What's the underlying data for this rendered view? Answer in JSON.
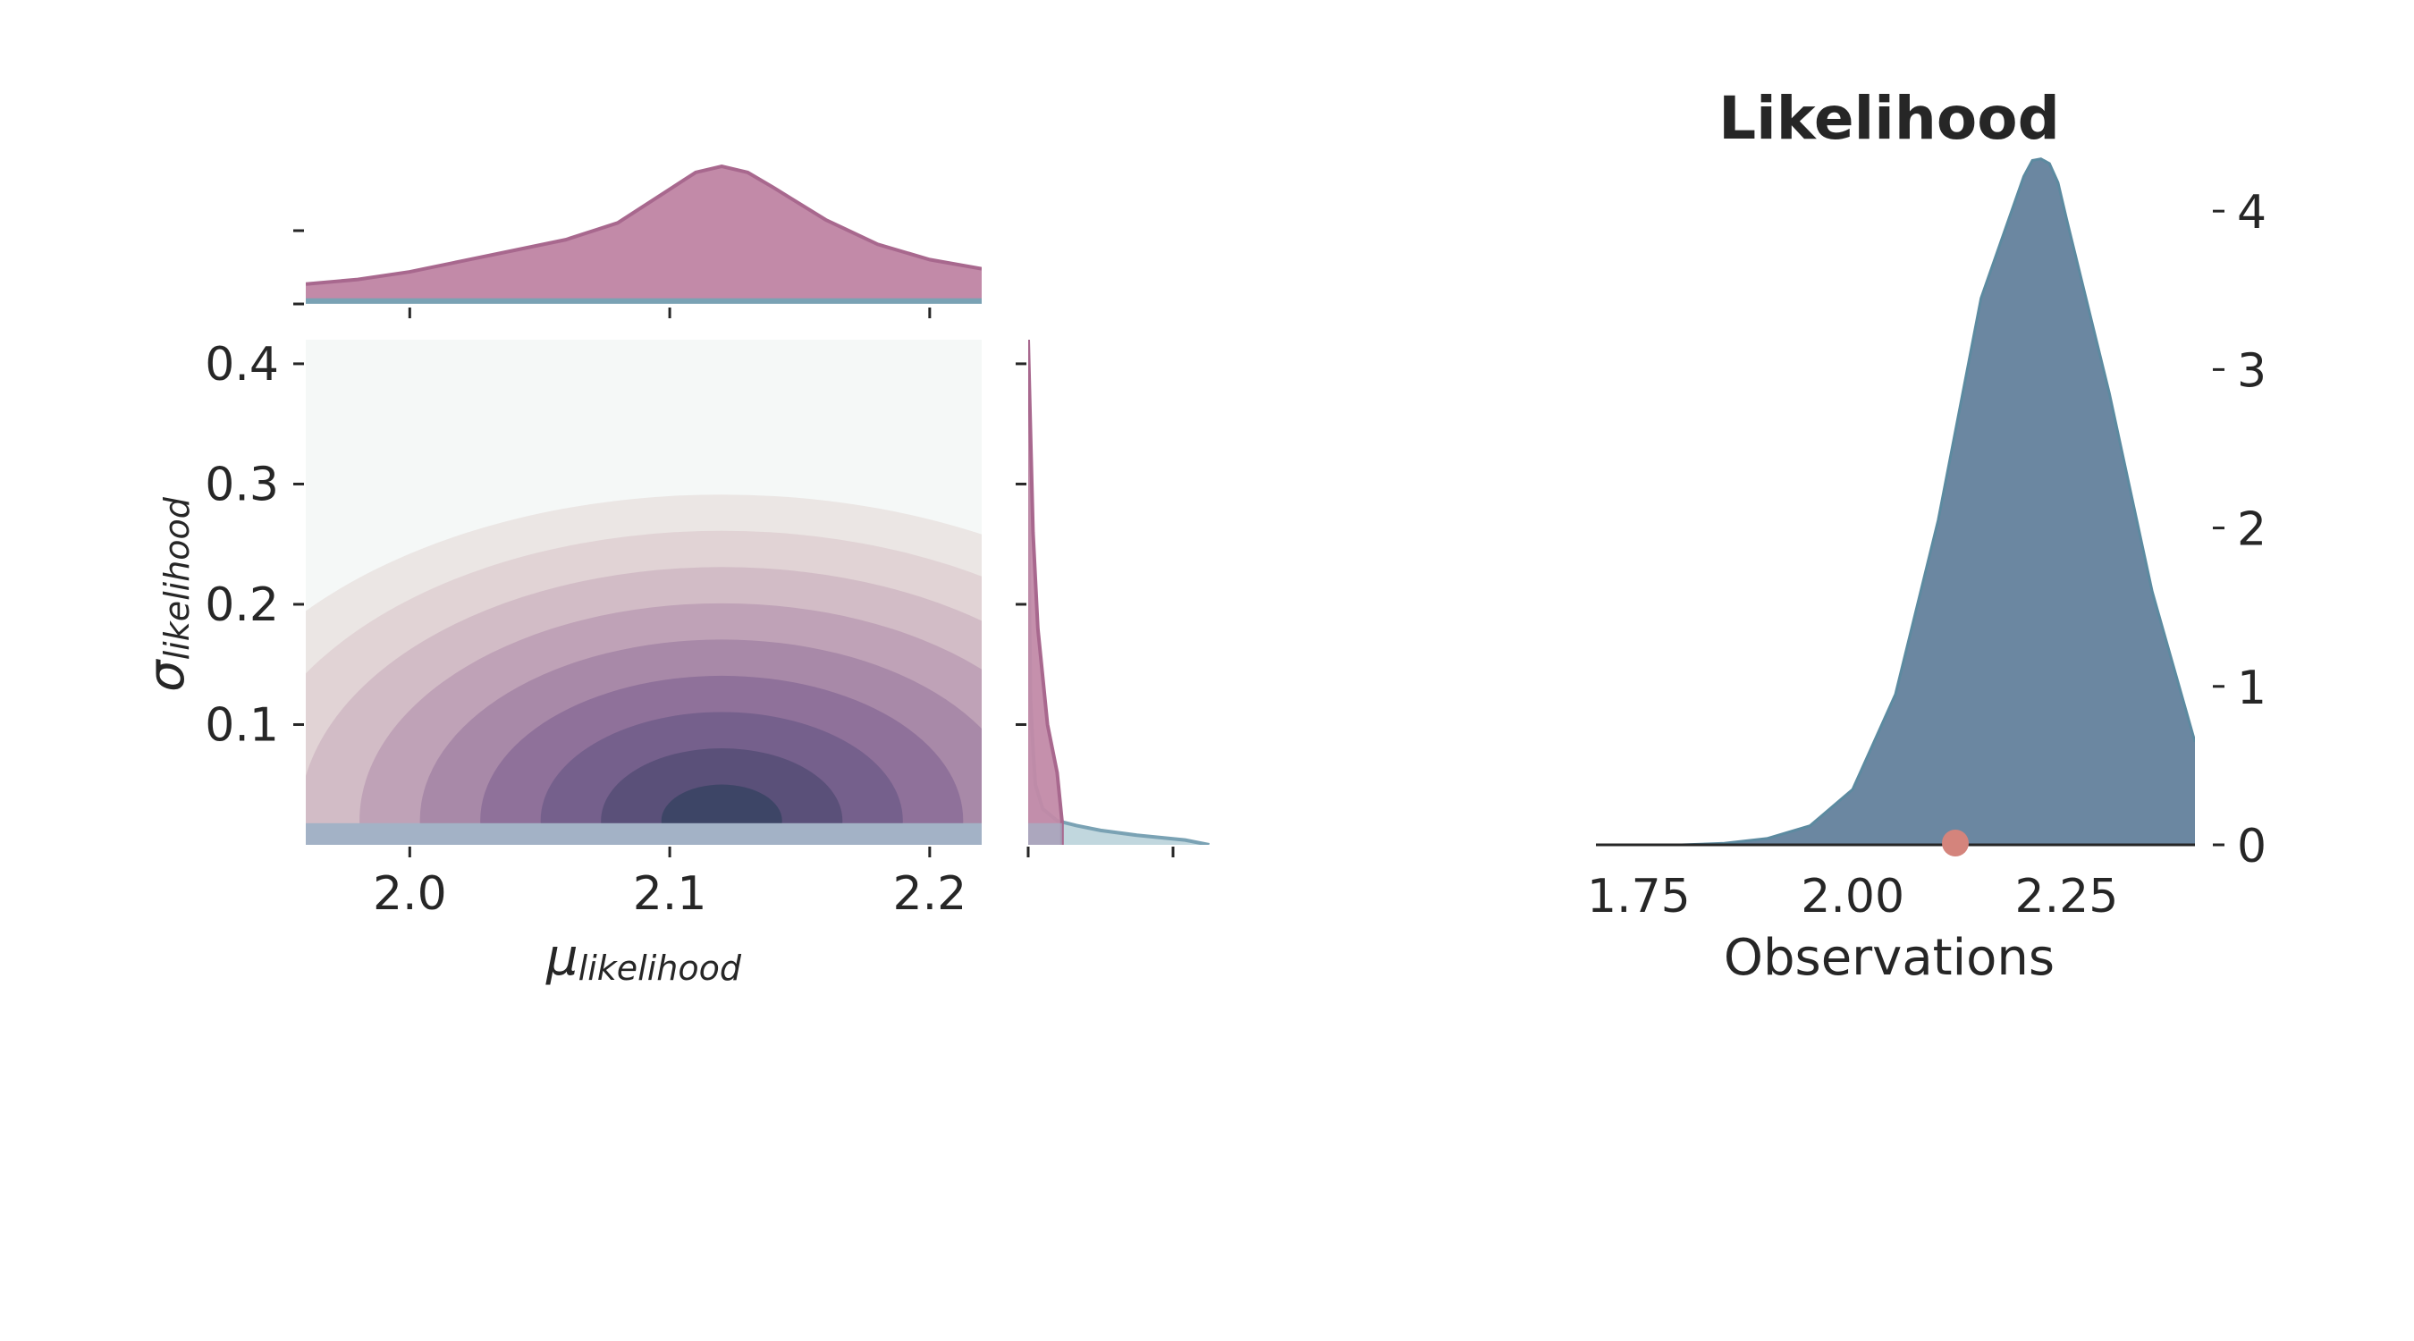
{
  "colors": {
    "prior": "#c28aa8",
    "prior_line": "#a8688e",
    "posterior_fill": "#b6d0d8",
    "posterior_line": "#7aa2b4",
    "contour_dark": "#3d4566",
    "contour_light": "#f5f8f7",
    "likelihood_fill": "#6b87a1",
    "likelihood_line": "#5c8aa0",
    "observed_point": "#d4847c",
    "axis": "#262626"
  },
  "chart_data": [
    {
      "type": "heatmap",
      "title": "",
      "xlabel": "μ_likelihood",
      "xlabel_main": "μ",
      "xlabel_sub": "likelihood",
      "ylabel": "σ_likelihood",
      "ylabel_main": "σ",
      "ylabel_sub": "likelihood",
      "xlim": [
        1.96,
        2.22
      ],
      "ylim": [
        0.0,
        0.42
      ],
      "xticks": [
        2.0,
        2.1,
        2.2
      ],
      "xtick_labels": [
        "2.0",
        "2.1",
        "2.2"
      ],
      "yticks": [
        0.1,
        0.2,
        0.3,
        0.4
      ],
      "ytick_labels": [
        "0.1",
        "0.2",
        "0.3",
        "0.4"
      ],
      "contour": {
        "center_x": 2.12,
        "center_y": 0.02,
        "scale_x": 0.095,
        "scale_y": 0.175,
        "levels": 9
      },
      "marginal_top": {
        "series": [
          {
            "role": "prior",
            "x": [
              1.96,
              1.98,
              2.0,
              2.02,
              2.04,
              2.06,
              2.08,
              2.1,
              2.11,
              2.12,
              2.13,
              2.14,
              2.16,
              2.18,
              2.2,
              2.22
            ],
            "density": [
              0.13,
              0.16,
              0.21,
              0.28,
              0.35,
              0.42,
              0.53,
              0.75,
              0.86,
              0.9,
              0.86,
              0.76,
              0.55,
              0.39,
              0.29,
              0.23
            ]
          },
          {
            "role": "posterior",
            "x": [
              1.96,
              2.22
            ],
            "density": [
              0.02,
              0.02
            ]
          }
        ]
      },
      "marginal_right": {
        "series": [
          {
            "role": "prior",
            "y": [
              0.0,
              0.02,
              0.04,
              0.06,
              0.08,
              0.1,
              0.14,
              0.18,
              0.22,
              0.26,
              0.3,
              0.34,
              0.38,
              0.42
            ],
            "density": [
              0.14,
              0.14,
              0.13,
              0.12,
              0.1,
              0.08,
              0.06,
              0.04,
              0.03,
              0.02,
              0.015,
              0.01,
              0.005,
              0.0
            ]
          },
          {
            "role": "posterior",
            "y": [
              0.0,
              0.004,
              0.008,
              0.012,
              0.016,
              0.02,
              0.03,
              0.05,
              0.08,
              0.12,
              0.2,
              0.3,
              0.42
            ],
            "density": [
              0.75,
              0.65,
              0.45,
              0.3,
              0.2,
              0.12,
              0.06,
              0.03,
              0.02,
              0.01,
              0.005,
              0.002,
              0.0
            ]
          }
        ]
      }
    },
    {
      "type": "area",
      "title": "Likelihood",
      "xlabel": "Observations",
      "ylabel": "",
      "xlim": [
        1.7,
        2.4
      ],
      "ylim": [
        0,
        4.3
      ],
      "xticks": [
        1.75,
        2.0,
        2.25
      ],
      "xtick_labels": [
        "1.75",
        "2.00",
        "2.25"
      ],
      "yticks": [
        0,
        1,
        2,
        3,
        4
      ],
      "ytick_labels": [
        "0",
        "1",
        "2",
        "3",
        "4"
      ],
      "y_axis_position": "right",
      "series": [
        {
          "x": [
            1.7,
            1.8,
            1.85,
            1.9,
            1.95,
            2.0,
            2.05,
            2.1,
            2.15,
            2.2,
            2.21,
            2.22,
            2.23,
            2.24,
            2.25,
            2.3,
            2.35,
            2.4
          ],
          "y": [
            0.0,
            0.0,
            0.01,
            0.04,
            0.12,
            0.35,
            0.95,
            2.05,
            3.45,
            4.22,
            4.32,
            4.33,
            4.3,
            4.18,
            3.95,
            2.85,
            1.6,
            0.65
          ]
        }
      ],
      "observed": [
        2.12
      ]
    }
  ]
}
